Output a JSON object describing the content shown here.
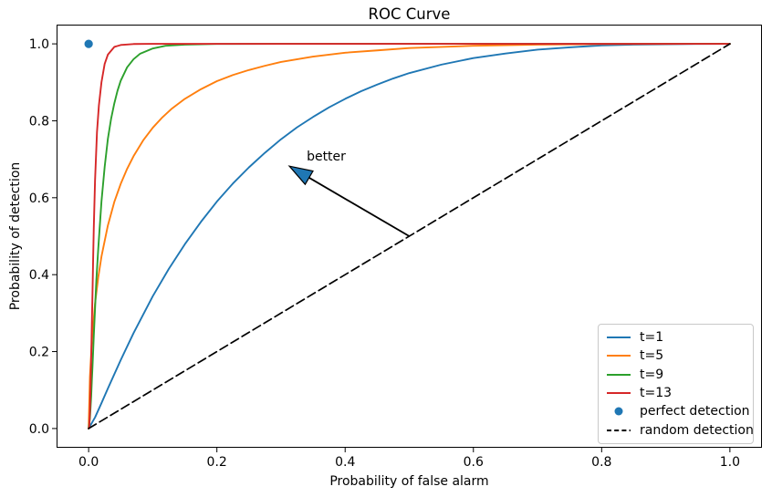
{
  "figure": {
    "background": "#ffffff"
  },
  "chart_data": {
    "type": "line",
    "title": "ROC Curve",
    "xlabel": "Probability of false alarm",
    "ylabel": "Probability of detection",
    "xlim": [
      -0.05,
      1.05
    ],
    "ylim": [
      -0.05,
      1.05
    ],
    "grid": false,
    "legend_position": "lower right",
    "xticks": [
      0.0,
      0.2,
      0.4,
      0.6,
      0.8,
      1.0
    ],
    "yticks": [
      0.0,
      0.2,
      0.4,
      0.6,
      0.8,
      1.0
    ],
    "xtick_labels": [
      "0.0",
      "0.2",
      "0.4",
      "0.6",
      "0.8",
      "1.0"
    ],
    "ytick_labels": [
      "0.0",
      "0.2",
      "0.4",
      "0.6",
      "0.8",
      "1.0"
    ],
    "axis_color": "#000000",
    "series": [
      {
        "name": "t=1",
        "color": "#1f77b4",
        "kind": "line",
        "style": "solid",
        "points": [
          [
            0,
            0
          ],
          [
            0.01,
            0.029
          ],
          [
            0.02,
            0.066
          ],
          [
            0.03,
            0.104
          ],
          [
            0.05,
            0.178
          ],
          [
            0.07,
            0.248
          ],
          [
            0.1,
            0.344
          ],
          [
            0.125,
            0.415
          ],
          [
            0.15,
            0.479
          ],
          [
            0.175,
            0.537
          ],
          [
            0.2,
            0.59
          ],
          [
            0.225,
            0.637
          ],
          [
            0.25,
            0.679
          ],
          [
            0.275,
            0.717
          ],
          [
            0.3,
            0.752
          ],
          [
            0.325,
            0.783
          ],
          [
            0.35,
            0.81
          ],
          [
            0.375,
            0.835
          ],
          [
            0.4,
            0.857
          ],
          [
            0.425,
            0.877
          ],
          [
            0.45,
            0.894
          ],
          [
            0.475,
            0.91
          ],
          [
            0.5,
            0.924
          ],
          [
            0.55,
            0.946
          ],
          [
            0.6,
            0.963
          ],
          [
            0.65,
            0.975
          ],
          [
            0.7,
            0.985
          ],
          [
            0.75,
            0.991
          ],
          [
            0.8,
            0.996
          ],
          [
            0.85,
            0.998
          ],
          [
            0.9,
            0.999
          ],
          [
            0.95,
            0.9998
          ],
          [
            1,
            1
          ]
        ]
      },
      {
        "name": "t=5",
        "color": "#ff7f0e",
        "kind": "line",
        "style": "solid",
        "points": [
          [
            0,
            0
          ],
          [
            0.002,
            0.134
          ],
          [
            0.005,
            0.227
          ],
          [
            0.01,
            0.325
          ],
          [
            0.015,
            0.393
          ],
          [
            0.02,
            0.447
          ],
          [
            0.03,
            0.528
          ],
          [
            0.04,
            0.589
          ],
          [
            0.05,
            0.636
          ],
          [
            0.06,
            0.675
          ],
          [
            0.07,
            0.708
          ],
          [
            0.085,
            0.749
          ],
          [
            0.1,
            0.782
          ],
          [
            0.115,
            0.809
          ],
          [
            0.13,
            0.832
          ],
          [
            0.15,
            0.857
          ],
          [
            0.175,
            0.882
          ],
          [
            0.2,
            0.903
          ],
          [
            0.225,
            0.919
          ],
          [
            0.25,
            0.932
          ],
          [
            0.275,
            0.943
          ],
          [
            0.3,
            0.953
          ],
          [
            0.35,
            0.967
          ],
          [
            0.4,
            0.977
          ],
          [
            0.45,
            0.983
          ],
          [
            0.5,
            0.989
          ],
          [
            0.6,
            0.995
          ],
          [
            0.7,
            0.998
          ],
          [
            0.8,
            0.9995
          ],
          [
            0.9,
            0.9999
          ],
          [
            1,
            1
          ]
        ]
      },
      {
        "name": "t=9",
        "color": "#2ca02c",
        "kind": "line",
        "style": "solid",
        "points": [
          [
            0,
            0
          ],
          [
            0.001,
            0.013
          ],
          [
            0.002,
            0.026
          ],
          [
            0.004,
            0.085
          ],
          [
            0.005,
            0.125
          ],
          [
            0.006,
            0.16
          ],
          [
            0.008,
            0.24
          ],
          [
            0.01,
            0.312
          ],
          [
            0.012,
            0.385
          ],
          [
            0.015,
            0.468
          ],
          [
            0.02,
            0.59
          ],
          [
            0.025,
            0.68
          ],
          [
            0.03,
            0.753
          ],
          [
            0.035,
            0.805
          ],
          [
            0.04,
            0.845
          ],
          [
            0.045,
            0.878
          ],
          [
            0.05,
            0.904
          ],
          [
            0.06,
            0.939
          ],
          [
            0.07,
            0.96
          ],
          [
            0.08,
            0.974
          ],
          [
            0.1,
            0.988
          ],
          [
            0.12,
            0.995
          ],
          [
            0.15,
            0.998
          ],
          [
            0.2,
            0.9997
          ],
          [
            0.3,
            1
          ],
          [
            0.5,
            1
          ],
          [
            1,
            1
          ]
        ]
      },
      {
        "name": "t=13",
        "color": "#d62728",
        "kind": "line",
        "style": "solid",
        "points": [
          [
            0,
            0
          ],
          [
            0.001,
            0.006
          ],
          [
            0.002,
            0.043
          ],
          [
            0.003,
            0.11
          ],
          [
            0.004,
            0.186
          ],
          [
            0.005,
            0.27
          ],
          [
            0.006,
            0.35
          ],
          [
            0.007,
            0.44
          ],
          [
            0.008,
            0.52
          ],
          [
            0.01,
            0.645
          ],
          [
            0.013,
            0.77
          ],
          [
            0.016,
            0.84
          ],
          [
            0.02,
            0.9
          ],
          [
            0.025,
            0.948
          ],
          [
            0.03,
            0.972
          ],
          [
            0.04,
            0.992
          ],
          [
            0.05,
            0.997
          ],
          [
            0.07,
            0.9996
          ],
          [
            0.1,
            1
          ],
          [
            0.3,
            1
          ],
          [
            0.6,
            1
          ],
          [
            1,
            1
          ]
        ]
      },
      {
        "name": "perfect detection",
        "color": "#1f77b4",
        "kind": "marker",
        "points": [
          [
            0,
            1
          ]
        ]
      },
      {
        "name": "random detection",
        "color": "#000000",
        "kind": "line",
        "style": "dashed",
        "points": [
          [
            0,
            0
          ],
          [
            1,
            1
          ]
        ]
      }
    ],
    "annotation": {
      "text": "better",
      "text_xy": [
        0.34,
        0.725
      ],
      "arrow_from": [
        0.5,
        0.5
      ],
      "arrow_to": [
        0.313,
        0.682
      ],
      "shaft_color": "#000000",
      "head_fill": "#1f77b4",
      "head_stroke": "#000000"
    }
  }
}
